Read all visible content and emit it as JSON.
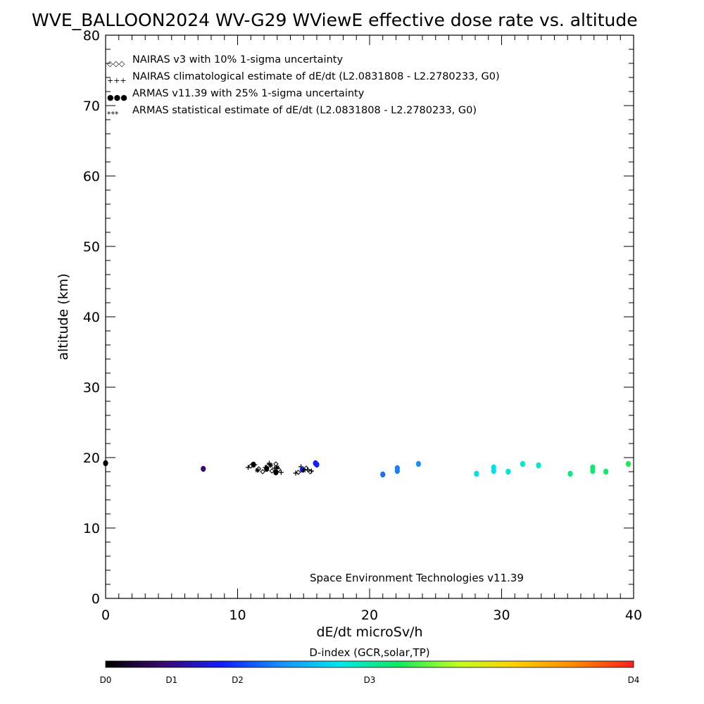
{
  "chart_data": {
    "type": "scatter",
    "title": "WVE_BALLOON2024 WV-G29 WViewE effective dose rate vs. altitude",
    "xlabel": "dE/dt microSv/h",
    "ylabel": "altitude (km)",
    "xlim": [
      0,
      40
    ],
    "ylim": [
      0,
      80
    ],
    "x_ticks": [
      "0",
      "10",
      "20",
      "30",
      "40"
    ],
    "y_ticks": [
      "0",
      "10",
      "20",
      "30",
      "40",
      "50",
      "60",
      "70",
      "80"
    ],
    "grid": false,
    "legend_position": "top-left",
    "legend": [
      {
        "symbol": "◇◇◇",
        "label": "NAIRAS v3 with 10% 1-sigma uncertainty"
      },
      {
        "symbol": "+++",
        "label": "NAIRAS climatological estimate of dE/dt (L2.0831808 - L2.2780233, G0)"
      },
      {
        "symbol": "●●●",
        "label": "ARMAS v11.39 with 25% 1-sigma uncertainty"
      },
      {
        "symbol": "***",
        "label": "ARMAS statistical estimate of dE/dt (L2.0831808 - L2.2780233, G0)"
      }
    ],
    "annotation": "Space Environment Technologies v11.39",
    "colorbar": {
      "title": "D-index (GCR,solar,TP)",
      "labels": [
        {
          "text": "D0",
          "pos": 0.0
        },
        {
          "text": "D1",
          "pos": 0.125
        },
        {
          "text": "D2",
          "pos": 0.25
        },
        {
          "text": "D3",
          "pos": 0.5
        },
        {
          "text": "D4",
          "pos": 1.0
        }
      ],
      "colors": [
        "#000000",
        "#3a0a6e",
        "#1020ff",
        "#1890ff",
        "#00e8e8",
        "#10e860",
        "#c0ff20",
        "#ffd000",
        "#ff8800",
        "#ff2020"
      ]
    },
    "series": [
      {
        "marker": "diamond",
        "color": "#000000",
        "x": [
          11.0,
          11.6,
          11.9,
          12.3,
          12.6,
          12.9,
          13.1,
          14.6,
          15.2,
          15.5
        ],
        "y": [
          18.8,
          18.4,
          18.0,
          18.8,
          18.1,
          19.1,
          18.3,
          17.9,
          18.5,
          18.0
        ]
      },
      {
        "marker": "plus",
        "color": "#000000",
        "x": [
          10.8,
          11.3,
          12.1,
          12.4,
          12.8,
          13.3,
          14.4,
          14.8,
          15.3,
          15.6
        ],
        "y": [
          18.6,
          19.0,
          18.6,
          19.2,
          18.5,
          17.9,
          17.8,
          18.7,
          18.3,
          18.1
        ]
      },
      {
        "marker": "dot",
        "colors": [
          "#000000",
          "#3a0a6e",
          "#000000",
          "#000000",
          "#000000",
          "#1020ff",
          "#1020ff",
          "#1020ff",
          "#1a70f0",
          "#1a80f8",
          "#1a80f8",
          "#1a90ff",
          "#00e0e8",
          "#00e0e8",
          "#00e0e8",
          "#00e4dc",
          "#00e8d0",
          "#00e8c8",
          "#10e880",
          "#10e870",
          "#10e870",
          "#10e868",
          "#20e850"
        ],
        "x": [
          0.0,
          7.4,
          11.2,
          12.2,
          12.9,
          14.9,
          15.9,
          16.0,
          21.0,
          22.1,
          22.1,
          23.7,
          28.1,
          29.4,
          29.4,
          30.5,
          31.6,
          32.8,
          35.2,
          36.9,
          36.9,
          37.9,
          39.6
        ],
        "y": [
          19.2,
          18.4,
          19.0,
          18.4,
          17.9,
          18.3,
          19.2,
          19.0,
          17.6,
          18.5,
          18.1,
          19.1,
          17.7,
          18.6,
          18.1,
          18.0,
          19.1,
          18.9,
          17.7,
          18.6,
          18.1,
          18.0,
          19.1
        ]
      },
      {
        "marker": "star",
        "color": "#000000",
        "x": [
          11.5,
          12.5,
          13.0,
          15.0
        ],
        "y": [
          18.2,
          18.9,
          18.6,
          18.2
        ]
      }
    ]
  }
}
